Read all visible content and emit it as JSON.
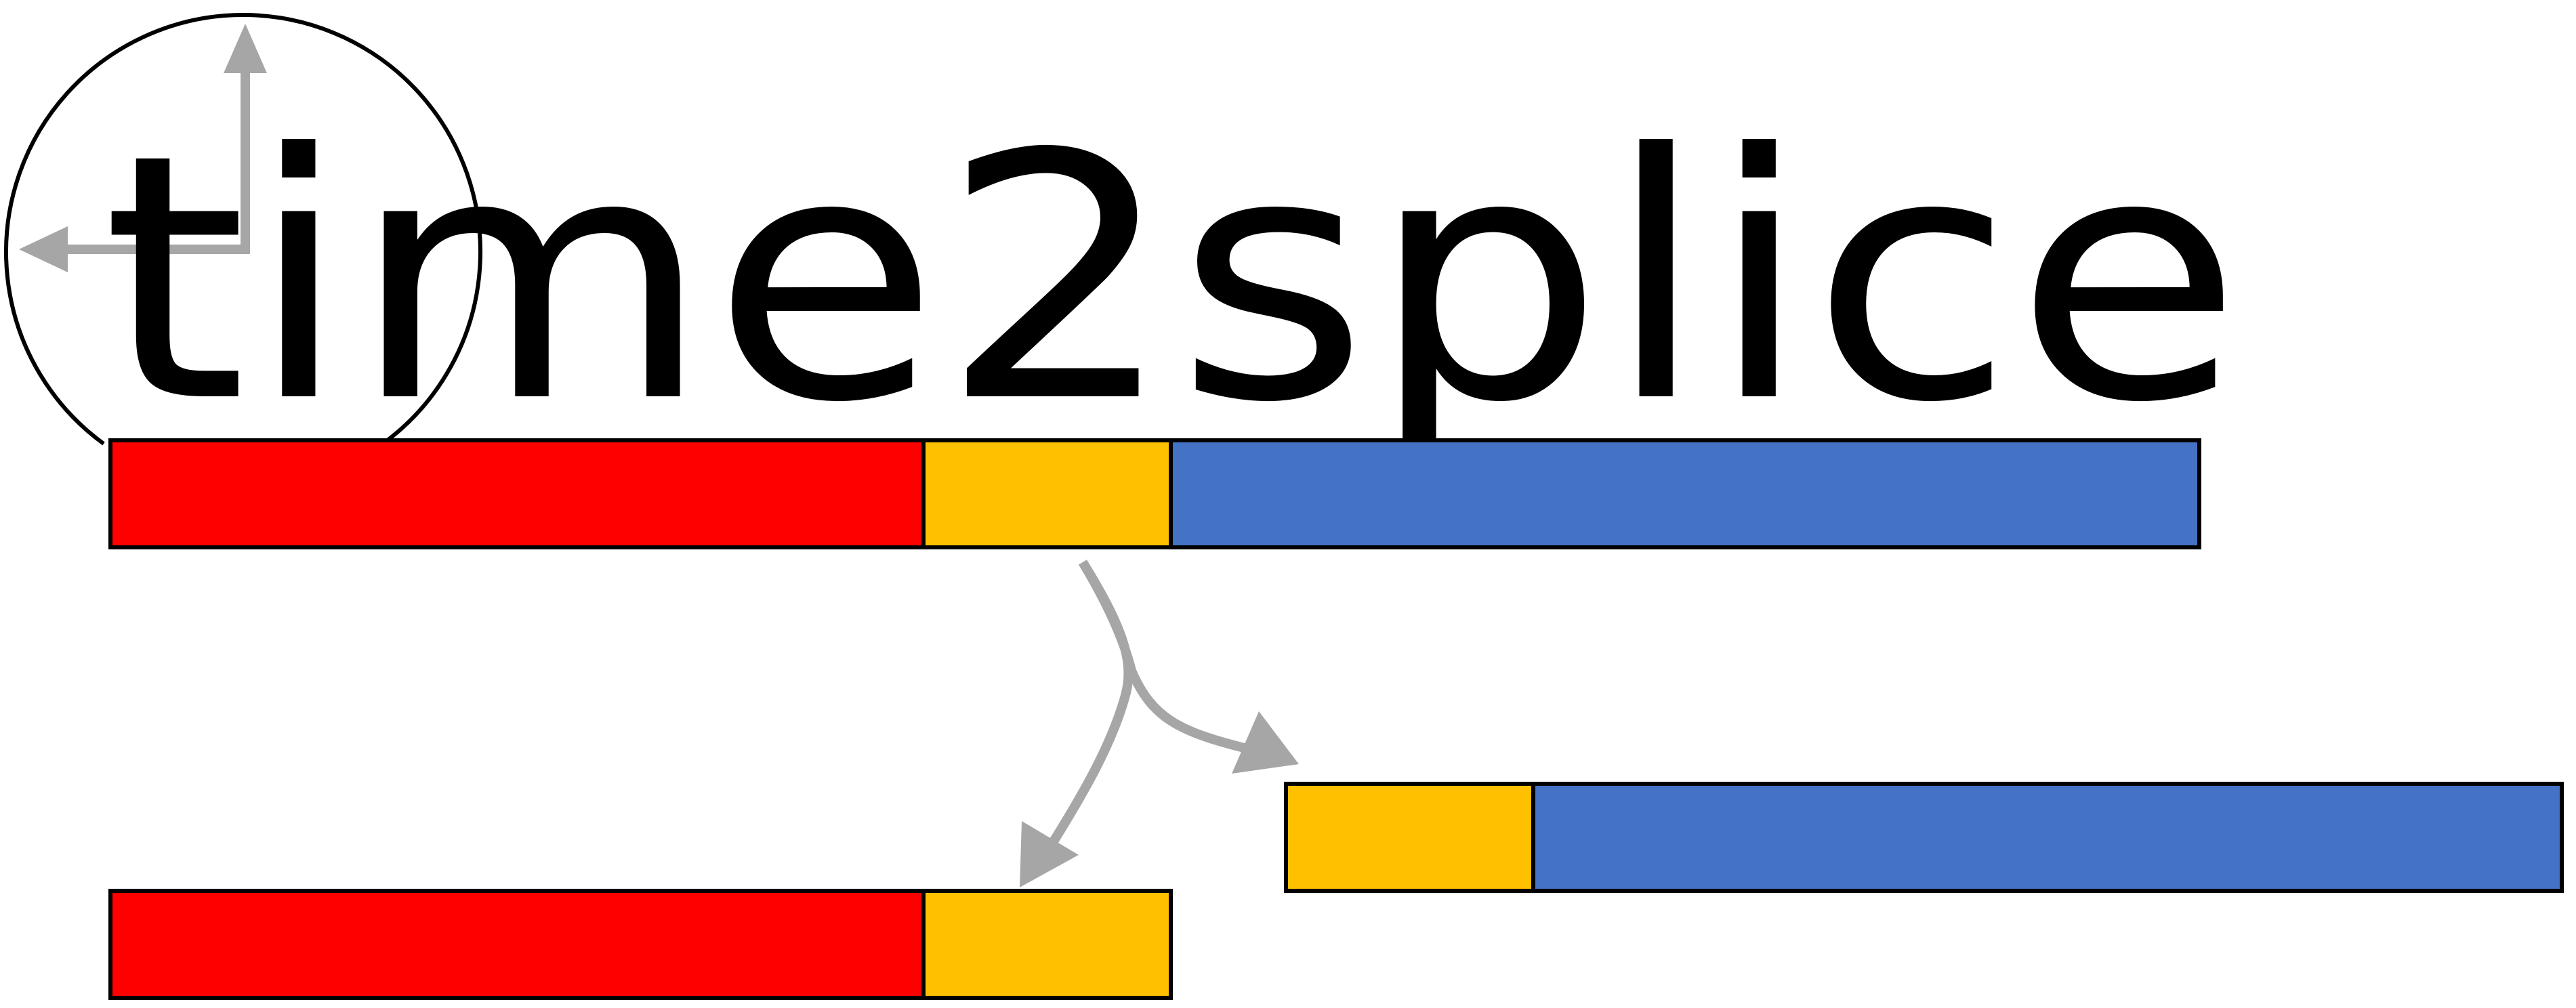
{
  "logo": {
    "title": "time2splice",
    "colors": {
      "segment_red": "#ff0000",
      "segment_yellow": "#ffc000",
      "segment_blue": "#4472c4",
      "arrow_gray": "#a6a6a6",
      "outline": "#000000"
    },
    "icons": [
      "clock-axes-icon",
      "split-arrows-icon"
    ]
  }
}
